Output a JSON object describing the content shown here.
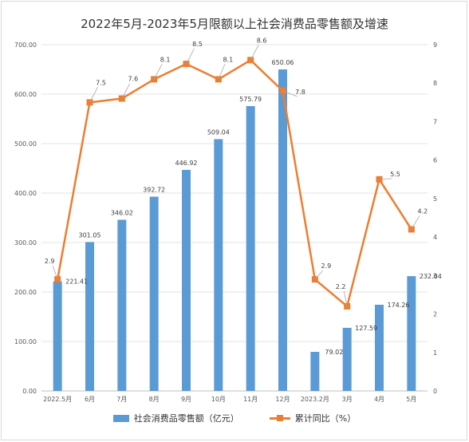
{
  "chart_data": {
    "type": "bar+line",
    "title": "2022年5月-2023年5月限额以上社会消费品零售额及增速",
    "categories": [
      "2022.5月",
      "6月",
      "7月",
      "8月",
      "9月",
      "10月",
      "11月",
      "12月",
      "2023.2月",
      "3月",
      "4月",
      "5月"
    ],
    "series": [
      {
        "name": "社会消费品零售额（亿元）",
        "type": "bar",
        "axis": "left",
        "color": "#5b9bd5",
        "values": [
          221.41,
          301.05,
          346.02,
          392.72,
          446.92,
          509.04,
          575.79,
          650.06,
          79.02,
          127.59,
          174.26,
          232.04
        ],
        "labels": [
          "221.41",
          "301.05",
          "346.02",
          "392.72",
          "446.92",
          "509.04",
          "575.79",
          "650.06",
          "79.02",
          "127.59",
          "174.26",
          "232.04"
        ]
      },
      {
        "name": "累计同比（%）",
        "type": "line",
        "axis": "right",
        "color": "#ed7d31",
        "values": [
          2.9,
          7.5,
          7.6,
          8.1,
          8.5,
          8.1,
          8.6,
          7.8,
          2.9,
          2.2,
          5.5,
          4.2
        ],
        "labels": [
          "2.9",
          "7.5",
          "7.6",
          "8.1",
          "8.5",
          "8.1",
          "8.6",
          "7.8",
          "2.9",
          "2.2",
          "5.5",
          "4.2"
        ]
      }
    ],
    "y_left": {
      "min": 0,
      "max": 700,
      "ticks": [
        "0.00",
        "100.00",
        "200.00",
        "300.00",
        "400.00",
        "500.00",
        "600.00",
        "700.00"
      ]
    },
    "y_right": {
      "min": 0,
      "max": 9,
      "ticks": [
        "0",
        "1",
        "2",
        "3",
        "4",
        "5",
        "6",
        "7",
        "8",
        "9"
      ]
    },
    "grid": true,
    "legend": "bottom-center"
  }
}
